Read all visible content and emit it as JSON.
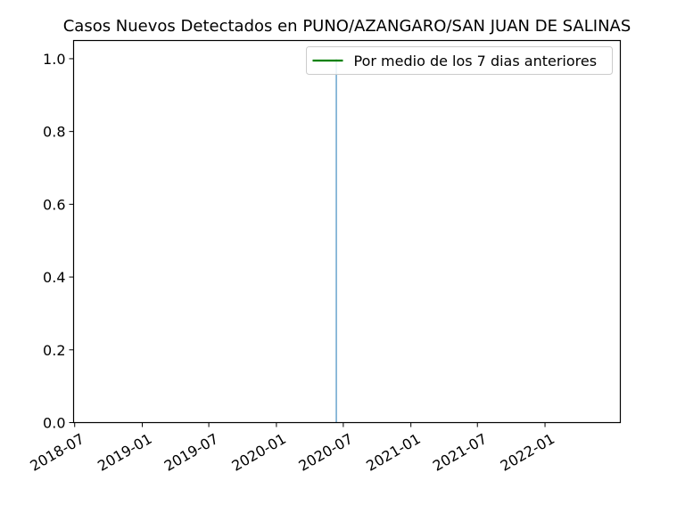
{
  "chart_data": {
    "type": "bar",
    "title": "Casos Nuevos Detectados en PUNO/AZANGARO/SAN JUAN DE SALINAS",
    "xlabel": "",
    "ylabel": "",
    "x_axis_type": "date",
    "xlim": [
      "2018-06-28",
      "2022-07-25"
    ],
    "ylim": [
      0,
      1.05
    ],
    "x_ticks": [
      "2018-07",
      "2019-01",
      "2019-07",
      "2020-01",
      "2020-07",
      "2021-01",
      "2021-07",
      "2022-01"
    ],
    "y_ticks": [
      "0.0",
      "0.2",
      "0.4",
      "0.6",
      "0.8",
      "1.0"
    ],
    "grid": false,
    "legend_position": "top-right",
    "series": [
      {
        "name": "",
        "type": "bar",
        "color": "#1f77b4",
        "points": [
          {
            "x": "2020-06-12",
            "y": 1
          }
        ]
      },
      {
        "name": "Por medio de los 7 dias anteriores",
        "type": "line",
        "color": "#008000",
        "points": []
      }
    ]
  }
}
